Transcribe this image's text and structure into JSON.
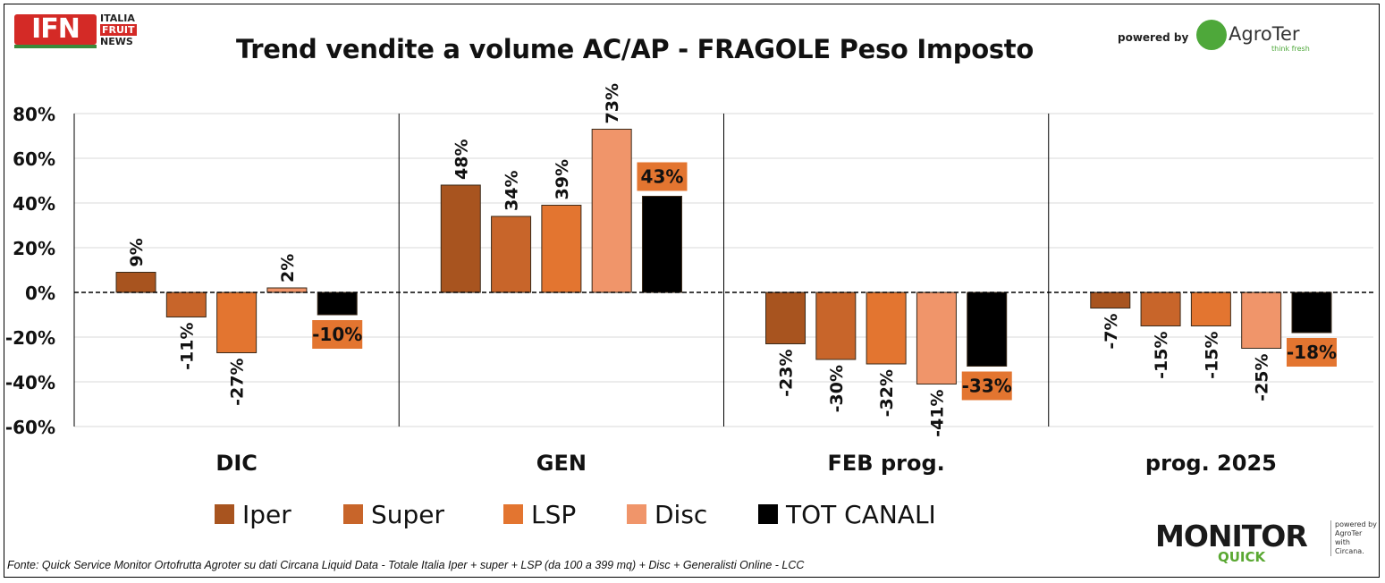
{
  "header": {
    "title": "Trend vendite a volume AC/AP - FRAGOLE Peso Imposto",
    "logo_left": {
      "mark": "IFN",
      "line1": "ITALIA",
      "line2": "FRUIT",
      "line3": "NEWS"
    },
    "powered_by": "powered by",
    "logo_right": {
      "name": "AgroTer",
      "tagline": "think fresh"
    }
  },
  "footer": {
    "source": "Fonte: Quick Service Monitor Ortofrutta Agroter su dati Circana Liquid Data - Totale Italia Iper + super + LSP (da 100 a 399 mq) + Disc + Generalisti Online - LCC",
    "brand_main": "MONITOR",
    "brand_sub": "QUICK",
    "brand_side_1": "powered by",
    "brand_side_2": "AgroTer",
    "brand_side_3": "with",
    "brand_side_4": "Circana."
  },
  "legend": [
    {
      "name": "Iper",
      "color": "#a8541f"
    },
    {
      "name": "Super",
      "color": "#c8652a"
    },
    {
      "name": "LSP",
      "color": "#e37530"
    },
    {
      "name": "Disc",
      "color": "#f0956a"
    },
    {
      "name": "TOT CANALI",
      "color": "#000000"
    }
  ],
  "chart_data": {
    "type": "bar",
    "title": "Trend vendite a volume AC/AP - FRAGOLE Peso Imposto",
    "categories": [
      "DIC",
      "GEN",
      "FEB prog.",
      "prog. 2025"
    ],
    "series": [
      {
        "name": "Iper",
        "values": [
          9,
          48,
          -23,
          -7
        ],
        "labels": [
          "9%",
          "48%",
          "-23%",
          "-7%"
        ]
      },
      {
        "name": "Super",
        "values": [
          -11,
          34,
          -30,
          -15
        ],
        "labels": [
          "-11%",
          "34%",
          "-30%",
          "-15%"
        ]
      },
      {
        "name": "LSP",
        "values": [
          -27,
          39,
          -32,
          -15
        ],
        "labels": [
          "-27%",
          "39%",
          "-32%",
          "-15%"
        ]
      },
      {
        "name": "Disc",
        "values": [
          2,
          73,
          -41,
          -25
        ],
        "labels": [
          "2%",
          "73%",
          "-41%",
          "-25%"
        ]
      },
      {
        "name": "TOT CANALI",
        "values": [
          -10,
          43,
          -33,
          -18
        ],
        "labels": [
          "-10%",
          "43%",
          "-33%",
          "-18%"
        ]
      }
    ],
    "y_ticks": [
      "80%",
      "60%",
      "40%",
      "20%",
      "0%",
      "-20%",
      "-40%",
      "-60%"
    ],
    "y_tick_values": [
      80,
      60,
      40,
      20,
      0,
      -20,
      -40,
      -60
    ],
    "ylim": [
      -60,
      80
    ],
    "grid": true,
    "zero_line": "dashed",
    "total_label_bg": "#e37530",
    "legend_position": "bottom"
  }
}
